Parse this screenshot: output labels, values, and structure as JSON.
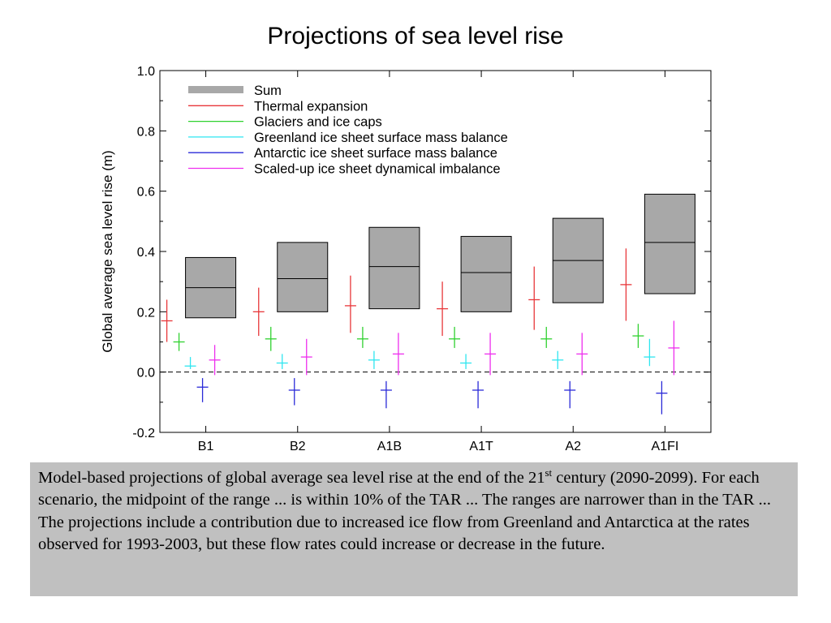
{
  "slide": {
    "title": "Projections of sea level rise",
    "caption": {
      "part1": "Model-based projections of global average sea level rise at the end of the 21",
      "sup": "st",
      "part2": " century (2090-2099). For each scenario, the midpoint of the range ... is within 10% of the TAR ... The ranges are narrower than in the TAR ... The projections include a contribution due to increased ice flow from Greenland and Antarctica at the rates observed for 1993-2003, but these flow rates could increase or decrease in the future."
    }
  },
  "chart_data": {
    "type": "bar",
    "title": "",
    "ylabel": "Global average sea level rise (m)",
    "xlabel": "",
    "ylim": [
      -0.2,
      1.0
    ],
    "yticks": [
      "-0.2",
      "0.0",
      "0.2",
      "0.4",
      "0.6",
      "0.8",
      "1.0"
    ],
    "zero_line": "dashed",
    "legend_position": "top-left",
    "categories": [
      "B1",
      "B2",
      "A1B",
      "A1T",
      "A2",
      "A1FI"
    ],
    "sum": {
      "name": "Sum",
      "color": "#a8a8a8",
      "low": [
        0.18,
        0.2,
        0.21,
        0.2,
        0.23,
        0.26
      ],
      "mid": [
        0.28,
        0.31,
        0.35,
        0.33,
        0.37,
        0.43
      ],
      "high": [
        0.38,
        0.43,
        0.48,
        0.45,
        0.51,
        0.59
      ]
    },
    "series": [
      {
        "name": "Thermal expansion",
        "color": "#e8373a",
        "low": [
          0.1,
          0.12,
          0.13,
          0.12,
          0.14,
          0.17
        ],
        "mid": [
          0.17,
          0.2,
          0.22,
          0.21,
          0.24,
          0.29
        ],
        "high": [
          0.24,
          0.28,
          0.32,
          0.3,
          0.35,
          0.41
        ]
      },
      {
        "name": "Glaciers and ice caps",
        "color": "#2fd12f",
        "low": [
          0.07,
          0.07,
          0.08,
          0.08,
          0.08,
          0.08
        ],
        "mid": [
          0.1,
          0.11,
          0.11,
          0.11,
          0.11,
          0.12
        ],
        "high": [
          0.13,
          0.15,
          0.15,
          0.15,
          0.15,
          0.16
        ]
      },
      {
        "name": "Greenland ice sheet surface mass balance",
        "color": "#2ee6f0",
        "low": [
          0.01,
          0.01,
          0.01,
          0.01,
          0.01,
          0.02
        ],
        "mid": [
          0.02,
          0.03,
          0.04,
          0.03,
          0.04,
          0.05
        ],
        "high": [
          0.05,
          0.06,
          0.07,
          0.06,
          0.07,
          0.11
        ]
      },
      {
        "name": "Antarctic ice sheet surface mass balance",
        "color": "#2a2ad8",
        "low": [
          -0.1,
          -0.11,
          -0.12,
          -0.12,
          -0.12,
          -0.14
        ],
        "mid": [
          -0.05,
          -0.06,
          -0.06,
          -0.06,
          -0.06,
          -0.07
        ],
        "high": [
          -0.02,
          -0.02,
          -0.03,
          -0.03,
          -0.03,
          -0.03
        ]
      },
      {
        "name": "Scaled-up ice sheet dynamical imbalance",
        "color": "#ee2fee",
        "low": [
          -0.01,
          -0.01,
          -0.01,
          -0.01,
          -0.01,
          -0.01
        ],
        "mid": [
          0.04,
          0.05,
          0.06,
          0.06,
          0.06,
          0.08
        ],
        "high": [
          0.09,
          0.11,
          0.13,
          0.13,
          0.13,
          0.17
        ]
      }
    ]
  }
}
